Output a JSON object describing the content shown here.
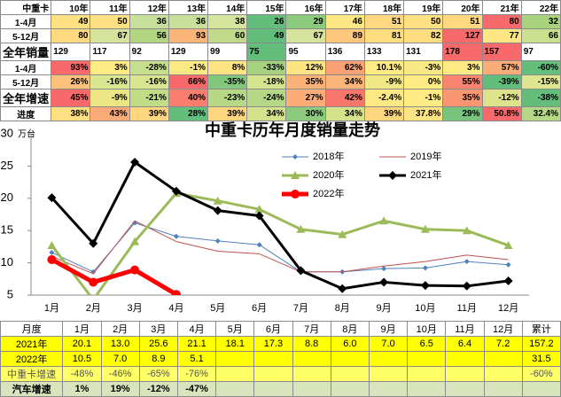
{
  "top_table": {
    "header": [
      "中重卡",
      "10年",
      "11年",
      "12年",
      "13年",
      "14年",
      "15年",
      "16年",
      "17年",
      "18年",
      "19年",
      "20年",
      "21年",
      "22年"
    ],
    "rows": [
      {
        "label": "1-4月",
        "cells": [
          "49",
          "50",
          "36",
          "36",
          "38",
          "26",
          "29",
          "46",
          "51",
          "50",
          "51",
          "80",
          "32"
        ],
        "colors": [
          "#ffe083",
          "#ffe083",
          "#c9e09c",
          "#c9e09c",
          "#d6e59e",
          "#63be7b",
          "#8ccb7e",
          "#fde783",
          "#ffd880",
          "#ffe083",
          "#ffd880",
          "#f8696b",
          "#a9d27f"
        ]
      },
      {
        "label": "5-12月",
        "cells": [
          "80",
          "67",
          "56",
          "93",
          "60",
          "49",
          "67",
          "89",
          "81",
          "82",
          "127",
          "77",
          "66"
        ],
        "colors": [
          "#fed980",
          "#d5e39c",
          "#b1d580",
          "#fcb579",
          "#c0da8a",
          "#63be7b",
          "#d5e39c",
          "#fdc77d",
          "#fedd81",
          "#fedd81",
          "#f8696b",
          "#fee783",
          "#cbe08f"
        ]
      },
      {
        "label": "全年销量",
        "cells": [
          "129",
          "117",
          "92",
          "129",
          "99",
          "75",
          "95",
          "136",
          "133",
          "131",
          "178",
          "157",
          "97"
        ],
        "colors": [
          "#ffffff",
          "#ffffff",
          "#ffffff",
          "#ffffff",
          "#ffffff",
          "#63be7b",
          "#ffffff",
          "#ffffff",
          "#ffffff",
          "#ffffff",
          "#f8696b",
          "#f8696b",
          "#ffffff"
        ]
      },
      {
        "label": "1-4月",
        "cells": [
          "93%",
          "3%",
          "-28%",
          "-1%",
          "8%",
          "-33%",
          "12%",
          "62%",
          "10.1%",
          "-3%",
          "3%",
          "57%",
          "-60%"
        ],
        "colors": [
          "#f8696b",
          "#ffeb84",
          "#c5df8d",
          "#fbe983",
          "#fee383",
          "#a6d17f",
          "#fde483",
          "#faa175",
          "#feeb84",
          "#f7e983",
          "#ffeb84",
          "#fbad78",
          "#63be7b"
        ]
      },
      {
        "label": "5-12月",
        "cells": [
          "26%",
          "-16%",
          "-16%",
          "66%",
          "-35%",
          "-18%",
          "35%",
          "34%",
          "-9%",
          "0%",
          "55%",
          "-39%",
          "-15%"
        ],
        "colors": [
          "#fcc27c",
          "#d9e58f",
          "#d9e58f",
          "#f8696b",
          "#83c77d",
          "#d4e38e",
          "#fbb279",
          "#fbb47a",
          "#f0e784",
          "#ffeb84",
          "#f98570",
          "#63be7b",
          "#dde68f"
        ]
      },
      {
        "label": "全年增速",
        "cells": [
          "45%",
          "-9%",
          "-21%",
          "40%",
          "-23%",
          "-24%",
          "27%",
          "42%",
          "-2.4%",
          "-1%",
          "35%",
          "-12%",
          "-38%"
        ],
        "colors": [
          "#f8696b",
          "#ebe683",
          "#c1dc87",
          "#f97e6f",
          "#b7d985",
          "#b4d885",
          "#fcad77",
          "#f8776d",
          "#fde983",
          "#ffeb84",
          "#fb9673",
          "#dee38b",
          "#63be7b"
        ]
      },
      {
        "label": "进度",
        "cells": [
          "38%",
          "43%",
          "39%",
          "28%",
          "39%",
          "34%",
          "30%",
          "34%",
          "39%",
          "37.8%",
          "29%",
          "50.8%",
          "32.4%"
        ],
        "colors": [
          "#ffdf82",
          "#fbab77",
          "#fed680",
          "#63be7b",
          "#fed680",
          "#d3e28b",
          "#8ccb7e",
          "#d3e28b",
          "#fed680",
          "#fee483",
          "#79c47d",
          "#f8696b",
          "#b4d884"
        ]
      }
    ]
  },
  "chart_data": {
    "type": "line",
    "title": "中重卡历年月度销量走势",
    "y_label": "万台",
    "categories": [
      "1月",
      "2月",
      "3月",
      "4月",
      "5月",
      "6月",
      "7月",
      "8月",
      "9月",
      "10月",
      "11月",
      "12月"
    ],
    "ylim": [
      5,
      30
    ],
    "yticks": [
      5,
      10,
      15,
      20,
      25,
      30
    ],
    "series": [
      {
        "name": "2018年",
        "color": "#4f81bd",
        "line_width": 1,
        "marker": "diamond",
        "values": [
          11.6,
          8.6,
          16.2,
          14.1,
          13.4,
          12.8,
          8.6,
          8.6,
          9.1,
          9.2,
          10.2,
          9.7
        ]
      },
      {
        "name": "2019年",
        "color": "#c0504d",
        "line_width": 1,
        "marker": "none",
        "values": [
          11.0,
          8.3,
          16.5,
          13.3,
          11.8,
          11.4,
          8.6,
          8.6,
          9.5,
          10.2,
          11.2,
          10.5
        ]
      },
      {
        "name": "2020年",
        "color": "#9bbb59",
        "line_width": 3,
        "marker": "triangle",
        "values": [
          12.7,
          4.3,
          13.3,
          20.8,
          19.6,
          18.3,
          15.2,
          14.4,
          16.5,
          15.2,
          15.0,
          12.7
        ]
      },
      {
        "name": "2021年",
        "color": "#000000",
        "line_width": 3,
        "marker": "diamond",
        "values": [
          20.1,
          13.0,
          25.6,
          21.1,
          18.1,
          17.3,
          8.8,
          6.0,
          7.0,
          6.5,
          6.4,
          7.2
        ]
      },
      {
        "name": "2022年",
        "color": "#ff0000",
        "line_width": 5,
        "marker": "circle",
        "values": [
          10.5,
          7.0,
          8.9,
          5.1,
          null,
          null,
          null,
          null,
          null,
          null,
          null,
          null
        ]
      }
    ]
  },
  "bottom_table": {
    "header": [
      "月度",
      "1月",
      "2月",
      "3月",
      "4月",
      "5月",
      "6月",
      "7月",
      "8月",
      "9月",
      "10月",
      "11月",
      "12月",
      "累计"
    ],
    "rows": [
      {
        "label": "2021年",
        "cells": [
          "20.1",
          "13.0",
          "25.6",
          "21.1",
          "18.1",
          "17.3",
          "8.8",
          "6.0",
          "7.0",
          "6.5",
          "6.4",
          "7.2",
          "157.2"
        ]
      },
      {
        "label": "2022年",
        "cells": [
          "10.5",
          "7.0",
          "8.9",
          "5.1",
          null,
          null,
          null,
          null,
          null,
          null,
          null,
          null,
          "31.5"
        ]
      },
      {
        "label": "中重卡增速",
        "cells": [
          "-48%",
          "-46%",
          "-65%",
          "-76%",
          null,
          null,
          null,
          null,
          null,
          null,
          null,
          null,
          "-60%"
        ]
      },
      {
        "label": "汽车增速",
        "cells": [
          "1%",
          "19%",
          "-12%",
          "-47%",
          null,
          null,
          null,
          null,
          null,
          null,
          null,
          null,
          null
        ]
      }
    ]
  }
}
